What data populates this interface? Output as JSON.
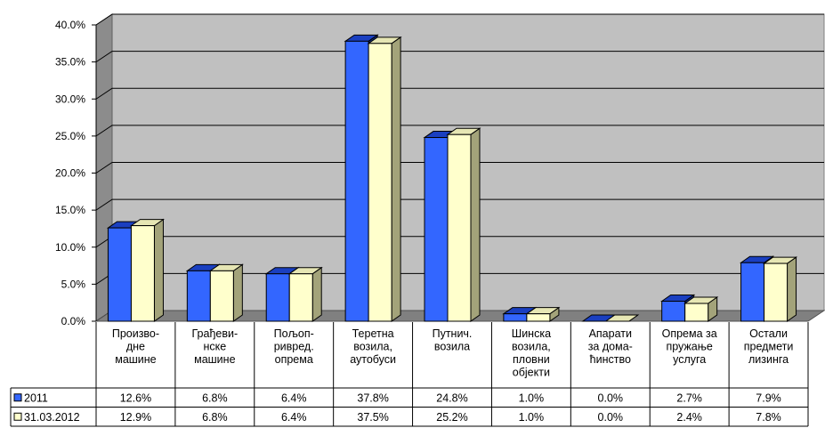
{
  "chart_data": {
    "type": "bar",
    "title": "",
    "xlabel": "",
    "ylabel": "",
    "ylim": [
      0,
      40
    ],
    "y_tick_step": 5,
    "y_tick_labels": [
      "0.0%",
      "5.0%",
      "10.0%",
      "15.0%",
      "20.0%",
      "25.0%",
      "30.0%",
      "35.0%",
      "40.0%"
    ],
    "grid": true,
    "style": "3d-clustered-columns-with-data-table",
    "categories": [
      [
        "Произво-",
        "дне",
        "машине"
      ],
      [
        "Грађеви-",
        "нске",
        "машине"
      ],
      [
        "Пољоп-",
        "ривред.",
        "опрема"
      ],
      [
        "Теретна",
        "возила,",
        "аутобуси"
      ],
      [
        "Путнич.",
        "возила"
      ],
      [
        "Шинска",
        "возила,",
        "пловни",
        "објекти"
      ],
      [
        "Апарати",
        "за дома-",
        "ћинство"
      ],
      [
        "Опрема за",
        "пружање",
        "услуга"
      ],
      [
        "Остали",
        "предмети",
        "лизинга"
      ]
    ],
    "series": [
      {
        "name": "2011",
        "color": "#3366ff",
        "values": [
          12.6,
          6.8,
          6.4,
          37.8,
          24.8,
          1.0,
          0.0,
          2.7,
          7.9
        ],
        "labels": [
          "12.6%",
          "6.8%",
          "6.4%",
          "37.8%",
          "24.8%",
          "1.0%",
          "0.0%",
          "2.7%",
          "7.9%"
        ]
      },
      {
        "name": "31.03.2012",
        "color": "#ffffcc",
        "values": [
          12.9,
          6.8,
          6.4,
          37.5,
          25.2,
          1.0,
          0.0,
          2.4,
          7.8
        ],
        "labels": [
          "12.9%",
          "6.8%",
          "6.4%",
          "37.5%",
          "25.2%",
          "1.0%",
          "0.0%",
          "2.4%",
          "7.8%"
        ]
      }
    ],
    "colors": {
      "wall": "#c0c0c0",
      "floor": "#808080",
      "side_wall": "#8c8c8c",
      "gridline": "#000000",
      "series1_top": "#1a3fc0",
      "series1_side": "#102a80",
      "series2_top": "#e6e6b4",
      "series2_side": "#a3a37a"
    }
  }
}
